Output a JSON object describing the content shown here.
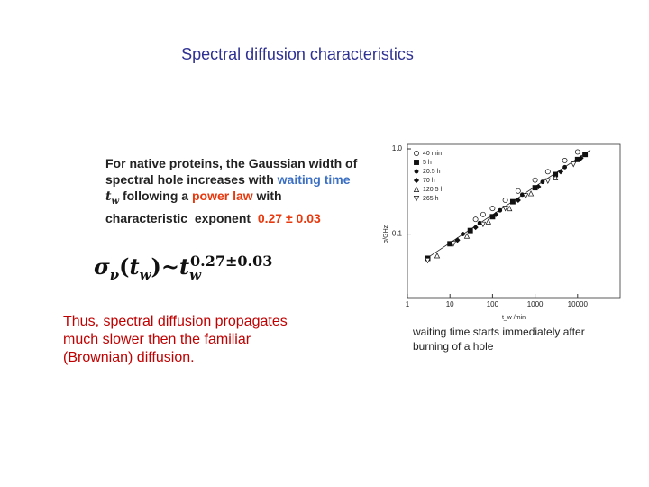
{
  "title": "Spectral diffusion characteristics",
  "intro": {
    "line1": [
      "For native proteins, the Gaussian width of"
    ],
    "line2": [
      "spectral hole increases with ",
      "waiting time"
    ],
    "line3": [
      "t",
      "w",
      " following a ",
      "power law",
      " with"
    ],
    "line4": [
      "characteristic  exponent  ",
      "0.27 ± 0.03"
    ]
  },
  "formula": {
    "sigma": "σ",
    "sigma_sub": "ν",
    "open": "(",
    "t": "t",
    "t_sub": "w",
    "close": ")~",
    "t2": "t",
    "t2_sub": "w",
    "exponent": "0.27±0.03"
  },
  "conclusion": {
    "line1": "Thus, spectral diffusion propagates",
    "line2": "much slower then the familiar",
    "line3": "(Brownian) diffusion."
  },
  "caption": {
    "line1": "waiting time starts immediately after",
    "line2": "burning of a hole"
  },
  "chart_data": {
    "type": "scatter",
    "xlabel": "t_w /min",
    "ylabel": "σ/GHz",
    "xscale": "log",
    "yscale": "log",
    "xlim": [
      1,
      100000
    ],
    "ylim": [
      0.018,
      1.13
    ],
    "xticks": [
      1,
      10,
      100,
      1000,
      10000
    ],
    "yticks": [
      {
        "value": 1,
        "label": "1.0"
      },
      0.1
    ],
    "legend": "upper left",
    "series": [
      {
        "name": "40 min",
        "marker": "circle-open",
        "x": [
          40,
          60,
          100,
          200,
          400,
          1000,
          2000,
          5000,
          10000
        ],
        "values": [
          0.149,
          0.17,
          0.2,
          0.25,
          0.32,
          0.43,
          0.54,
          0.73,
          0.92
        ]
      },
      {
        "name": "5 h",
        "marker": "square-filled",
        "x": [
          3,
          10,
          30,
          100,
          300,
          1000,
          3000,
          10000,
          15000
        ],
        "values": [
          0.052,
          0.077,
          0.11,
          0.16,
          0.24,
          0.35,
          0.5,
          0.75,
          0.86
        ]
      },
      {
        "name": "20.5 h",
        "marker": "circle-filled",
        "x": [
          20,
          50,
          150,
          500,
          1500,
          5000
        ],
        "values": [
          0.1,
          0.135,
          0.19,
          0.29,
          0.41,
          0.61
        ]
      },
      {
        "name": "70 h",
        "marker": "diamond-filled",
        "x": [
          15,
          40,
          120,
          400,
          1200,
          4000,
          12000
        ],
        "values": [
          0.085,
          0.12,
          0.17,
          0.25,
          0.36,
          0.54,
          0.78
        ]
      },
      {
        "name": "120.5 h",
        "marker": "triangle-open",
        "x": [
          5,
          25,
          80,
          250,
          800,
          3000
        ],
        "values": [
          0.056,
          0.095,
          0.14,
          0.2,
          0.3,
          0.46
        ]
      },
      {
        "name": "265 h",
        "marker": "triangle-down-open",
        "x": [
          3,
          12,
          60,
          200,
          600,
          2000,
          8000
        ],
        "values": [
          0.049,
          0.077,
          0.13,
          0.2,
          0.28,
          0.42,
          0.66
        ]
      }
    ],
    "fit": {
      "x": [
        3,
        20000
      ],
      "values": [
        0.053,
        0.97
      ]
    }
  }
}
